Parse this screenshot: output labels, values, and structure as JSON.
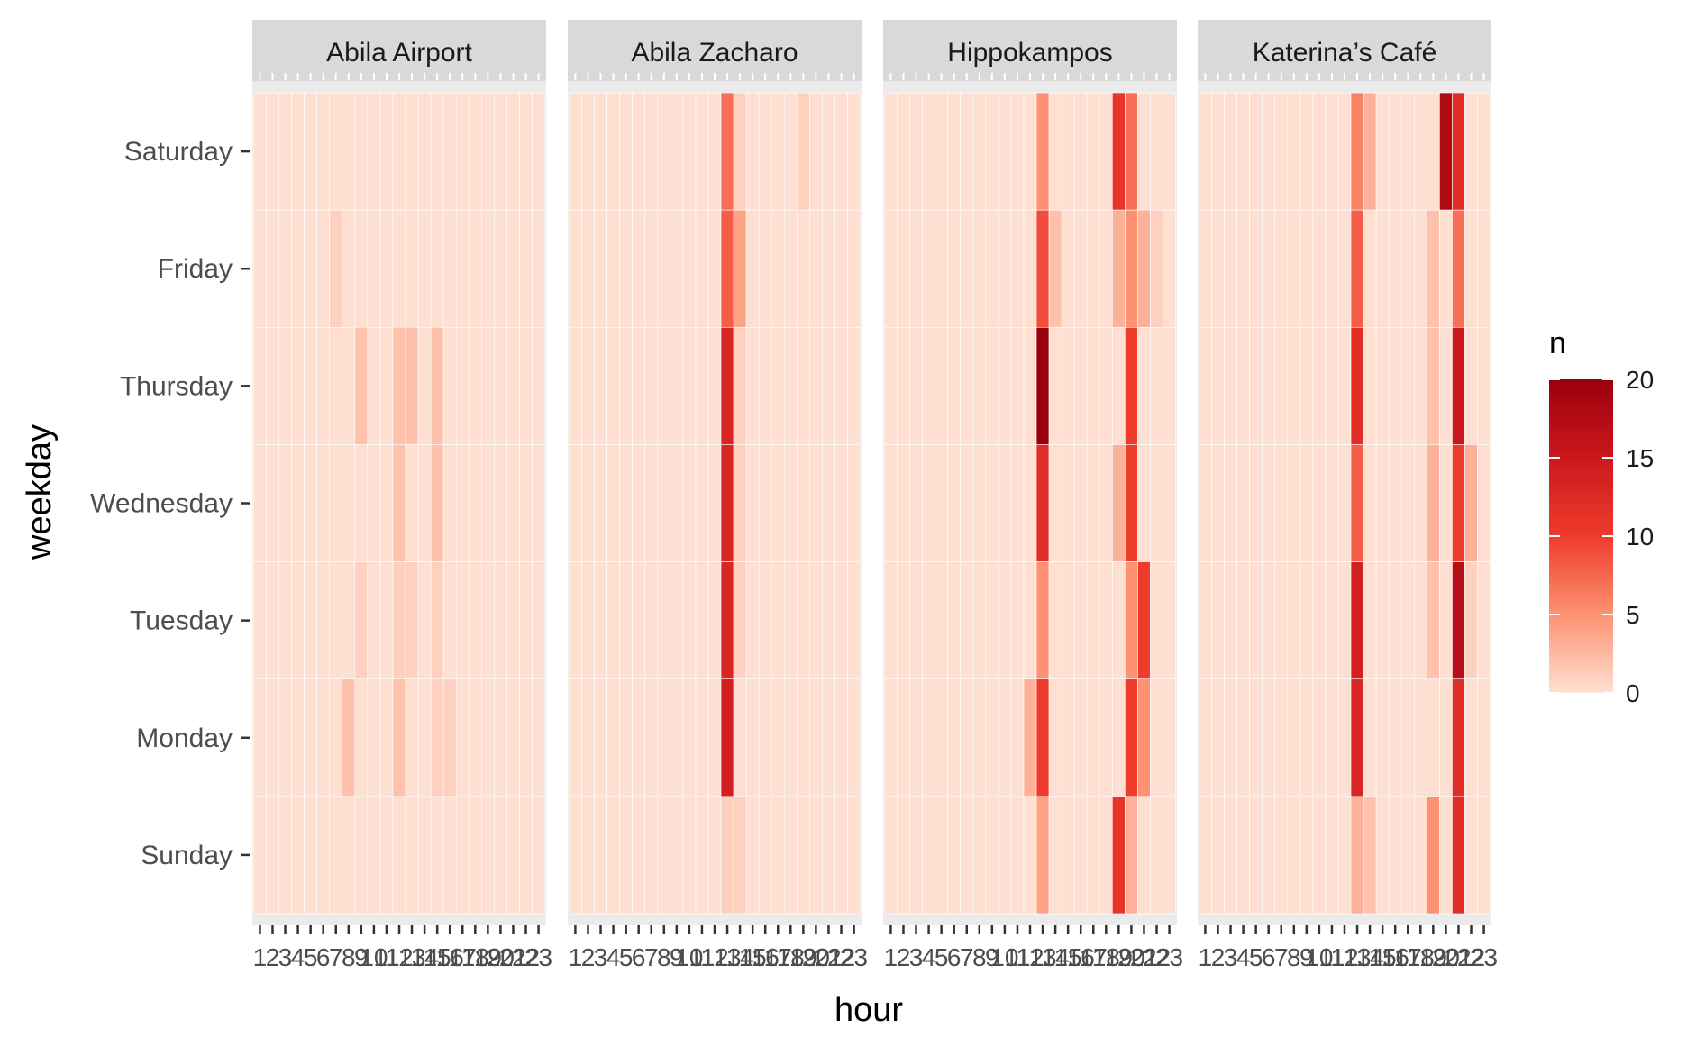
{
  "chart_data": {
    "type": "heatmap",
    "facet_by": "location",
    "facets": [
      "Abila Airport",
      "Abila Zacharo",
      "Hippokampos",
      "Katerina’s Café"
    ],
    "xlabel": "hour",
    "ylabel": "weekday",
    "x_categories": [
      "1",
      "2",
      "3",
      "4",
      "5",
      "6",
      "7",
      "8",
      "9",
      "10",
      "11",
      "12",
      "13",
      "14",
      "15",
      "16",
      "17",
      "18",
      "19",
      "20",
      "21",
      "22",
      "23"
    ],
    "y_categories": [
      "Saturday",
      "Friday",
      "Thursday",
      "Wednesday",
      "Tuesday",
      "Monday",
      "Sunday"
    ],
    "legend": {
      "title": "n",
      "placement": "right",
      "min": 0,
      "max": 20,
      "ticks": [
        0,
        5,
        10,
        15,
        20
      ],
      "low_color": "#fee0d2",
      "high_color": "#99000d"
    },
    "values": {
      "Abila Airport": {
        "Saturday": [
          0,
          0,
          0,
          0,
          0,
          0,
          0,
          0,
          0,
          0,
          0,
          0,
          0,
          0,
          0,
          0,
          0,
          0,
          0,
          0,
          0,
          0,
          0
        ],
        "Friday": [
          0,
          0,
          0,
          0,
          0,
          0,
          1,
          0,
          0,
          0,
          0,
          0,
          0,
          0,
          0,
          0,
          0,
          0,
          0,
          0,
          0,
          0,
          0
        ],
        "Thursday": [
          0,
          0,
          0,
          0,
          0,
          0,
          0,
          0,
          2,
          0,
          0,
          2,
          2,
          0,
          2,
          0,
          0,
          0,
          0,
          0,
          0,
          0,
          0
        ],
        "Wednesday": [
          0,
          0,
          0,
          0,
          0,
          0,
          0,
          0,
          0,
          0,
          0,
          2,
          0,
          0,
          2,
          0,
          0,
          0,
          0,
          0,
          0,
          0,
          0
        ],
        "Tuesday": [
          0,
          0,
          0,
          0,
          0,
          0,
          0,
          0,
          1,
          0,
          0,
          1,
          1,
          0,
          1,
          0,
          0,
          0,
          0,
          0,
          0,
          0,
          0
        ],
        "Monday": [
          0,
          0,
          0,
          0,
          0,
          0,
          0,
          2,
          0,
          0,
          0,
          2,
          0,
          0,
          1,
          1,
          0,
          0,
          0,
          0,
          0,
          0,
          0
        ],
        "Sunday": [
          0,
          0,
          0,
          0,
          0,
          0,
          0,
          0,
          0,
          0,
          0,
          0,
          0,
          0,
          0,
          0,
          0,
          0,
          0,
          0,
          0,
          0,
          0
        ]
      },
      "Abila Zacharo": {
        "Saturday": [
          0,
          0,
          0,
          0,
          0,
          0,
          0,
          0,
          0,
          0,
          0,
          0,
          7,
          1,
          0,
          0,
          0,
          0,
          1,
          0,
          0,
          0,
          0
        ],
        "Friday": [
          0,
          0,
          0,
          0,
          0,
          0,
          0,
          0,
          0,
          0,
          0,
          0,
          8,
          4,
          0,
          0,
          0,
          0,
          0,
          0,
          0,
          0,
          0
        ],
        "Thursday": [
          0,
          0,
          0,
          0,
          0,
          0,
          0,
          0,
          0,
          0,
          0,
          0,
          13,
          1,
          0,
          0,
          0,
          0,
          0,
          0,
          0,
          0,
          0
        ],
        "Wednesday": [
          0,
          0,
          0,
          0,
          0,
          0,
          0,
          0,
          0,
          0,
          0,
          0,
          13,
          1,
          0,
          0,
          0,
          0,
          0,
          0,
          0,
          0,
          0
        ],
        "Tuesday": [
          0,
          0,
          0,
          0,
          0,
          0,
          0,
          0,
          0,
          0,
          0,
          0,
          13,
          1,
          0,
          0,
          0,
          0,
          0,
          0,
          0,
          0,
          0
        ],
        "Monday": [
          0,
          0,
          0,
          0,
          0,
          0,
          0,
          0,
          0,
          0,
          0,
          0,
          14,
          0,
          0,
          0,
          0,
          0,
          0,
          0,
          0,
          0,
          0
        ],
        "Sunday": [
          0,
          0,
          0,
          0,
          0,
          0,
          0,
          0,
          0,
          0,
          0,
          0,
          1,
          1,
          0,
          0,
          0,
          0,
          0,
          0,
          0,
          0,
          0
        ]
      },
      "Hippokampos": {
        "Saturday": [
          0,
          0,
          0,
          0,
          0,
          0,
          0,
          0,
          0,
          0,
          0,
          0,
          5,
          0,
          0,
          0,
          0,
          0,
          11,
          7,
          0,
          0,
          0
        ],
        "Friday": [
          0,
          0,
          0,
          0,
          0,
          0,
          0,
          0,
          0,
          0,
          0,
          0,
          9,
          2,
          0,
          0,
          0,
          0,
          3,
          5,
          3,
          1,
          0
        ],
        "Thursday": [
          0,
          0,
          0,
          0,
          0,
          0,
          0,
          0,
          0,
          0,
          0,
          0,
          20,
          0,
          0,
          0,
          0,
          0,
          0,
          10,
          0,
          0,
          0
        ],
        "Wednesday": [
          0,
          0,
          0,
          0,
          0,
          0,
          0,
          0,
          0,
          0,
          0,
          0,
          12,
          0,
          0,
          0,
          0,
          0,
          3,
          10,
          0,
          0,
          0
        ],
        "Tuesday": [
          0,
          0,
          0,
          0,
          0,
          0,
          0,
          0,
          0,
          0,
          0,
          0,
          5,
          0,
          0,
          0,
          0,
          0,
          0,
          5,
          10,
          0,
          0
        ],
        "Monday": [
          0,
          0,
          0,
          0,
          0,
          0,
          0,
          0,
          0,
          0,
          0,
          3,
          10,
          0,
          0,
          0,
          0,
          0,
          0,
          10,
          5,
          0,
          0
        ],
        "Sunday": [
          0,
          0,
          0,
          0,
          0,
          0,
          0,
          0,
          0,
          0,
          0,
          0,
          4,
          0,
          0,
          0,
          0,
          0,
          11,
          3,
          0,
          0,
          0
        ]
      },
      "Katerina’s Café": {
        "Saturday": [
          0,
          0,
          0,
          0,
          0,
          0,
          0,
          0,
          0,
          0,
          0,
          0,
          6,
          3,
          0,
          0,
          0,
          0,
          0,
          18,
          12,
          0,
          0
        ],
        "Friday": [
          0,
          0,
          0,
          0,
          0,
          0,
          0,
          0,
          0,
          0,
          0,
          0,
          8,
          0,
          0,
          0,
          0,
          0,
          2,
          0,
          7,
          0,
          0
        ],
        "Thursday": [
          0,
          0,
          0,
          0,
          0,
          0,
          0,
          0,
          0,
          0,
          0,
          0,
          12,
          0,
          0,
          0,
          0,
          0,
          2,
          0,
          15,
          0,
          0
        ],
        "Wednesday": [
          0,
          0,
          0,
          0,
          0,
          0,
          0,
          0,
          0,
          0,
          0,
          0,
          8,
          0,
          0,
          0,
          0,
          0,
          3,
          0,
          10,
          3,
          0
        ],
        "Tuesday": [
          0,
          0,
          0,
          0,
          0,
          0,
          0,
          0,
          0,
          0,
          0,
          0,
          14,
          0,
          0,
          0,
          0,
          0,
          2,
          0,
          17,
          1,
          0
        ],
        "Monday": [
          0,
          0,
          0,
          0,
          0,
          0,
          0,
          0,
          0,
          0,
          0,
          0,
          13,
          0,
          0,
          0,
          0,
          0,
          0,
          0,
          12,
          0,
          0
        ],
        "Sunday": [
          0,
          0,
          0,
          0,
          0,
          0,
          0,
          0,
          0,
          0,
          0,
          0,
          3,
          2,
          0,
          0,
          0,
          0,
          5,
          0,
          12,
          0,
          0
        ]
      }
    }
  }
}
